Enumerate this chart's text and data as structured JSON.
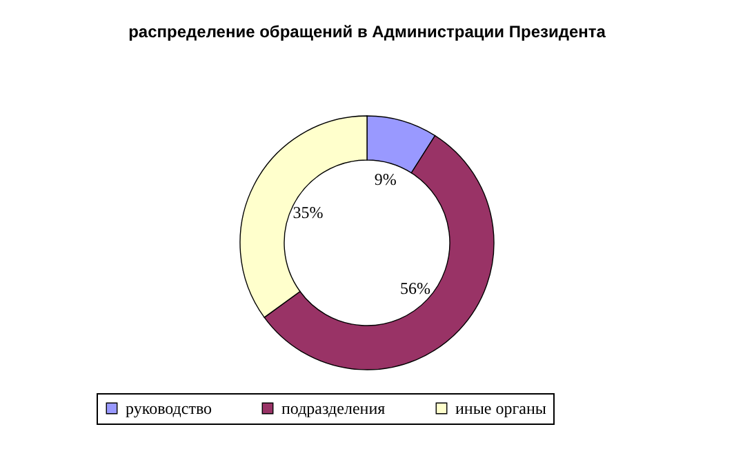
{
  "chart_data": {
    "type": "donut",
    "title": "распределение обращений в Администрации Президента",
    "categories": [
      "руководство",
      "подразделения",
      "иные органы"
    ],
    "values": [
      9,
      56,
      35
    ],
    "colors": [
      "#9999ff",
      "#993366",
      "#ffffcc"
    ],
    "value_labels": [
      "9%",
      "56%",
      "35%"
    ],
    "legend": "bottom"
  }
}
